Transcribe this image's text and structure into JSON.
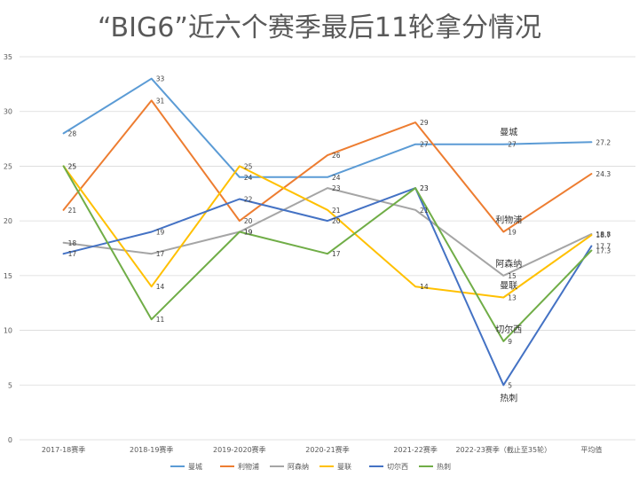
{
  "chart_data": {
    "type": "line",
    "title": "“BIG6”近六个赛季最后11轮拿分情况",
    "categories": [
      "2017-18赛季",
      "2018-19赛季",
      "2019-2020赛季",
      "2020-21赛季",
      "2021-22赛季",
      "2022-23赛季（截止至35轮）",
      "平均值"
    ],
    "ylim": [
      0,
      35
    ],
    "yticks": [
      0,
      5,
      10,
      15,
      20,
      25,
      30,
      35
    ],
    "grid": true,
    "legend_position": "bottom",
    "series": [
      {
        "name": "曼城",
        "color": "#5B9BD5",
        "values": [
          28,
          33,
          24,
          24,
          27,
          27,
          27.2
        ]
      },
      {
        "name": "利物浦",
        "color": "#ED7D31",
        "values": [
          21,
          31,
          20,
          26,
          29,
          19,
          24.3
        ]
      },
      {
        "name": "阿森纳",
        "color": "#A5A5A5",
        "values": [
          18,
          17,
          19,
          23,
          21,
          15,
          18.8
        ]
      },
      {
        "name": "曼联",
        "color": "#FFC000",
        "values": [
          25,
          14,
          25,
          21,
          14,
          13,
          18.7
        ]
      },
      {
        "name": "切尔西",
        "color": "#4472C4",
        "values": [
          17,
          19,
          22,
          20,
          23,
          5,
          17.7
        ]
      },
      {
        "name": "热刺",
        "color": "#70AD47",
        "values": [
          25,
          11,
          19,
          17,
          23,
          9,
          17.3
        ]
      }
    ],
    "annotations": [
      "曼城",
      "利物浦",
      "阿森纳",
      "曼联",
      "热刺",
      "切尔西"
    ]
  }
}
